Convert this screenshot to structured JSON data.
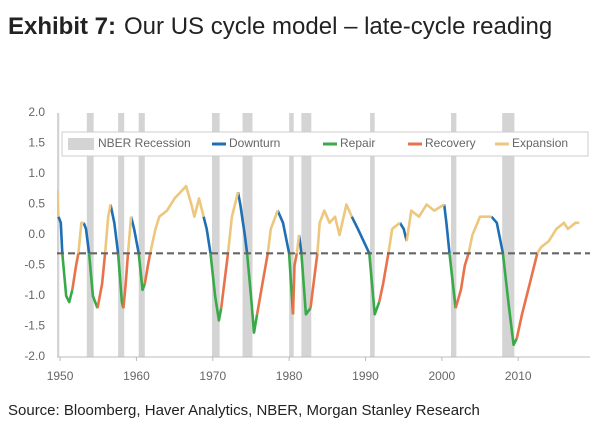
{
  "chart_data": {
    "type": "line",
    "exhibit": "Exhibit 7:",
    "title": "Our US cycle model – late-cycle reading",
    "source": "Source: Bloomberg, Haver Analytics, NBER, Morgan Stanley Research",
    "xlim": [
      1949.6,
      2019.4
    ],
    "xticks": [
      1950,
      1960,
      1970,
      1980,
      1990,
      2000,
      2010
    ],
    "ylim": [
      -2,
      2
    ],
    "yticks": [
      {
        "value": 2,
        "label": "2.0"
      },
      {
        "value": 1.5,
        "label": "1.5"
      },
      {
        "value": 1,
        "label": "1.0"
      },
      {
        "value": 0.5,
        "label": "0.5"
      },
      {
        "value": 0,
        "label": "0.0"
      },
      {
        "value": -0.5,
        "label": "-0.5"
      },
      {
        "value": -1,
        "label": "-1.0"
      },
      {
        "value": -1.5,
        "label": "-1.5"
      },
      {
        "value": -2,
        "label": "-2.0"
      }
    ],
    "grid": false,
    "threshold": -0.3,
    "recessions": {
      "name": "NBER Recession",
      "color": "#d4d4d4",
      "periods": [
        [
          1949.6,
          1949.9
        ],
        [
          1953.5,
          1954.4
        ],
        [
          1957.6,
          1958.4
        ],
        [
          1960.3,
          1961.1
        ],
        [
          1969.9,
          1970.9
        ],
        [
          1973.9,
          1975.2
        ],
        [
          1980.0,
          1980.6
        ],
        [
          1981.6,
          1982.9
        ],
        [
          1990.6,
          1991.2
        ],
        [
          2001.2,
          2001.9
        ],
        [
          2007.9,
          2009.5
        ]
      ]
    },
    "series": [
      {
        "name": "Downturn",
        "color": "#1f6fb4",
        "x": [
          1949.8,
          1950.1,
          1950.3,
          null,
          1953.1,
          1953.4,
          1953.8,
          null,
          1956.6,
          1957.1,
          1957.6,
          null,
          1959.3,
          1959.7,
          1960.3,
          null,
          1968.8,
          1969.2,
          1969.7,
          null,
          1973.3,
          1973.6,
          1974.2,
          1974.5,
          null,
          1978.5,
          1979.2,
          1980,
          null,
          1981.3,
          1981.6,
          null,
          1988.2,
          1989,
          1990.5,
          null,
          1994.5,
          1995,
          1995.4,
          null,
          2000.3,
          2000.6,
          2001,
          null,
          2006.5,
          2007.2,
          2008
        ],
        "values": [
          0.3,
          0.2,
          -0.3,
          null,
          0.2,
          0.1,
          -0.3,
          null,
          0.5,
          0.2,
          -0.3,
          null,
          0.3,
          0.1,
          -0.3,
          null,
          0.3,
          0.1,
          -0.3,
          null,
          0.7,
          0.5,
          0.0,
          -0.3,
          null,
          0.4,
          0.2,
          -0.3,
          null,
          0.0,
          -0.3,
          null,
          0.3,
          0.1,
          -0.3,
          null,
          0.2,
          0.1,
          -0.1,
          null,
          0.5,
          0.2,
          -0.3,
          null,
          0.3,
          0.2,
          -0.3
        ]
      },
      {
        "name": "Repair",
        "color": "#3aa94a",
        "x": [
          1950.3,
          1950.8,
          1951.2,
          1951.6,
          null,
          1953.8,
          1954.3,
          1954.9,
          null,
          1957.6,
          1958.1,
          1958.3,
          null,
          1960.3,
          1960.8,
          1961.1,
          null,
          1969.7,
          1970.3,
          1970.8,
          1971.1,
          null,
          1974.5,
          1975,
          1975.4,
          1975.8,
          null,
          1980,
          1980.5,
          null,
          1981.6,
          1982.2,
          1982.8,
          null,
          1990.5,
          1991.2,
          1991.8,
          null,
          2001,
          2001.8,
          null,
          2008,
          2008.8,
          2009.4,
          2009.8
        ],
        "values": [
          -0.3,
          -1.0,
          -1.1,
          -0.9,
          null,
          -0.3,
          -1.0,
          -1.2,
          null,
          -0.3,
          -1.1,
          -1.2,
          null,
          -0.3,
          -0.9,
          -0.8,
          null,
          -0.3,
          -1.0,
          -1.4,
          -1.2,
          null,
          -0.3,
          -1.0,
          -1.6,
          -1.3,
          null,
          -0.3,
          -1.3,
          null,
          -0.3,
          -1.3,
          -1.2,
          null,
          -0.3,
          -1.3,
          -1.1,
          null,
          -0.3,
          -1.2,
          null,
          -0.3,
          -1.2,
          -1.8,
          -1.7
        ]
      },
      {
        "name": "Recovery",
        "color": "#e8734a",
        "x": [
          1951.6,
          1952.1,
          1952.4,
          null,
          1954.9,
          1955.5,
          1955.9,
          null,
          1958.3,
          1958.6,
          1958.9,
          null,
          1961.1,
          1961.5,
          1961.8,
          null,
          1971.1,
          1971.5,
          1972,
          null,
          1975.8,
          1976.5,
          1977.2,
          null,
          1980.5,
          1980.7,
          1981,
          null,
          1982.8,
          1983.3,
          1983.7,
          null,
          1991.8,
          1992.3,
          1993,
          null,
          2001.8,
          2002.5,
          2003,
          2003.5,
          null,
          2009.8,
          2010.5,
          2011.5,
          2012.5
        ],
        "values": [
          -0.9,
          -0.5,
          -0.3,
          null,
          -1.2,
          -0.8,
          -0.3,
          null,
          -1.2,
          -0.8,
          -0.3,
          null,
          -0.8,
          -0.5,
          -0.3,
          null,
          -1.2,
          -0.8,
          -0.3,
          null,
          -1.3,
          -0.8,
          -0.3,
          null,
          -1.3,
          -0.5,
          -0.3,
          null,
          -1.2,
          -0.7,
          -0.3,
          null,
          -1.1,
          -0.8,
          -0.3,
          null,
          -1.2,
          -0.9,
          -0.5,
          -0.3,
          null,
          -1.7,
          -1.3,
          -0.8,
          -0.3
        ]
      },
      {
        "name": "Expansion",
        "color": "#ecc77d",
        "x": [
          1949.6,
          1949.8,
          null,
          1952.4,
          1952.8,
          1953.1,
          null,
          1955.9,
          1956.3,
          1956.6,
          null,
          1958.9,
          1959.3,
          null,
          1961.8,
          1962.5,
          1963,
          1964,
          1965,
          1966.5,
          1967.2,
          1967.6,
          1968.2,
          1968.8,
          null,
          1972,
          1972.5,
          1973.3,
          null,
          1977.2,
          1977.6,
          1978.5,
          null,
          1981,
          1981.3,
          null,
          1983.7,
          1984,
          1984.6,
          1985.3,
          1986,
          1986.6,
          1987.5,
          1988.2,
          null,
          1993,
          1993.5,
          1994.5,
          null,
          1995.4,
          1996,
          1997,
          1998,
          1999,
          2000.3,
          null,
          2003.5,
          2004,
          2005,
          2006.5,
          null,
          2012.5,
          2013,
          2014,
          2015,
          2016,
          2016.5,
          2017.5,
          2018
        ],
        "values": [
          0.75,
          0.3,
          null,
          -0.3,
          0.2,
          0.2,
          null,
          -0.3,
          0.3,
          0.5,
          null,
          -0.3,
          0.3,
          null,
          -0.3,
          0.1,
          0.3,
          0.4,
          0.6,
          0.8,
          0.5,
          0.3,
          0.6,
          0.3,
          null,
          -0.3,
          0.3,
          0.7,
          null,
          -0.3,
          0.1,
          0.4,
          null,
          -0.3,
          0.0,
          null,
          -0.3,
          0.2,
          0.4,
          0.2,
          0.3,
          0.0,
          0.5,
          0.3,
          null,
          -0.3,
          0.1,
          0.2,
          null,
          -0.1,
          0.4,
          0.3,
          0.5,
          0.4,
          0.5,
          null,
          -0.3,
          0.0,
          0.3,
          0.3,
          null,
          -0.3,
          -0.2,
          -0.1,
          0.1,
          0.2,
          0.1,
          0.2,
          0.2
        ]
      }
    ]
  }
}
